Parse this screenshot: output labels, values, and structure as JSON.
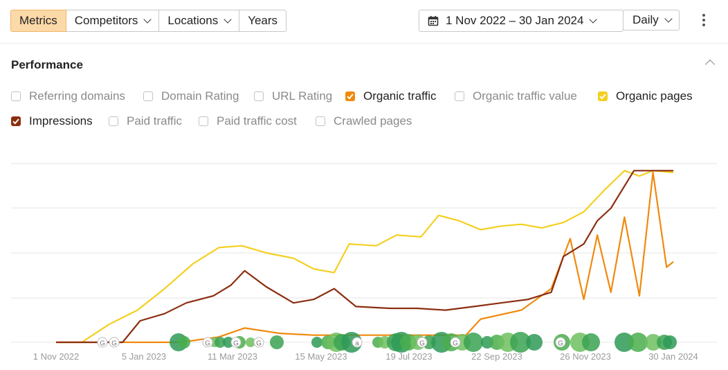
{
  "toolbar": {
    "tabs": [
      {
        "label": "Metrics",
        "active": true
      },
      {
        "label": "Competitors",
        "dropdown": true
      },
      {
        "label": "Locations",
        "dropdown": true
      },
      {
        "label": "Years"
      }
    ],
    "date_range": "1 Nov 2022 – 30 Jan 2024",
    "granularity": "Daily",
    "icons": {
      "calendar": "calendar-icon",
      "more": "more-vertical-icon"
    }
  },
  "section": {
    "title": "Performance"
  },
  "metrics": [
    {
      "label": "Referring domains",
      "checked": false
    },
    {
      "label": "Domain Rating",
      "checked": false
    },
    {
      "label": "URL Rating",
      "checked": false
    },
    {
      "label": "Organic traffic",
      "checked": true,
      "color": "#f0890c"
    },
    {
      "label": "Organic traffic value",
      "checked": false
    },
    {
      "label": "Organic pages",
      "checked": true,
      "color": "#f4cf1e"
    },
    {
      "label": "Impressions",
      "checked": true,
      "color": "#8b2e10"
    },
    {
      "label": "Paid traffic",
      "checked": false
    },
    {
      "label": "Paid traffic cost",
      "checked": false
    },
    {
      "label": "Crawled pages",
      "checked": false
    }
  ],
  "chart_data": {
    "type": "line",
    "x_tick_labels": [
      "1 Nov 2022",
      "5 Jan 2023",
      "11 Mar 2023",
      "15 May 2023",
      "19 Jul 2023",
      "22 Sep 2023",
      "26 Nov 2023",
      "30 Jan 2024"
    ],
    "y_range_relative": [
      0,
      100
    ],
    "grid": true,
    "series": [
      {
        "name": "Organic pages",
        "color": "#f4cf1e",
        "x": [
          "2022-11-01",
          "2022-11-20",
          "2022-12-10",
          "2022-12-31",
          "2023-01-20",
          "2023-02-10",
          "2023-03-01",
          "2023-03-18",
          "2023-04-05",
          "2023-04-25",
          "2023-05-10",
          "2023-05-25",
          "2023-06-05",
          "2023-06-25",
          "2023-07-10",
          "2023-07-28",
          "2023-08-10",
          "2023-08-25",
          "2023-09-10",
          "2023-09-25",
          "2023-10-10",
          "2023-10-25",
          "2023-11-10",
          "2023-11-25",
          "2023-12-10",
          "2023-12-25",
          "2024-01-05",
          "2024-01-15",
          "2024-01-30"
        ],
        "values": [
          0,
          0,
          10,
          18,
          30,
          44,
          53,
          54,
          50,
          47,
          41,
          39,
          55,
          54,
          60,
          59,
          71,
          68,
          63,
          65,
          66,
          64,
          67,
          73,
          85,
          96,
          93,
          96,
          95
        ]
      },
      {
        "name": "Impressions",
        "color": "#8b2e10",
        "x": [
          "2022-11-01",
          "2022-12-20",
          "2023-01-02",
          "2023-01-20",
          "2023-02-05",
          "2023-02-25",
          "2023-03-10",
          "2023-03-20",
          "2023-04-05",
          "2023-04-25",
          "2023-05-10",
          "2023-05-25",
          "2023-06-10",
          "2023-07-05",
          "2023-07-25",
          "2023-08-15",
          "2023-09-05",
          "2023-09-25",
          "2023-10-15",
          "2023-11-01",
          "2023-11-10",
          "2023-11-25",
          "2023-12-05",
          "2023-12-15",
          "2024-01-01",
          "2024-01-30"
        ],
        "values": [
          0,
          0,
          12,
          16,
          22,
          26,
          32,
          40,
          31,
          22,
          24,
          30,
          20,
          19,
          19,
          18,
          20,
          22,
          24,
          28,
          48,
          55,
          68,
          75,
          96,
          96
        ]
      },
      {
        "name": "Organic traffic",
        "color": "#f0890c",
        "x": [
          "2022-11-01",
          "2023-02-01",
          "2023-03-01",
          "2023-03-20",
          "2023-04-15",
          "2023-05-10",
          "2023-06-10",
          "2023-07-20",
          "2023-08-30",
          "2023-09-10",
          "2023-10-10",
          "2023-11-01",
          "2023-11-15",
          "2023-11-25",
          "2023-12-05",
          "2023-12-15",
          "2023-12-25",
          "2024-01-05",
          "2024-01-15",
          "2024-01-25",
          "2024-01-30"
        ],
        "values": [
          0,
          0,
          3,
          8,
          5,
          4,
          4,
          4,
          4,
          13,
          18,
          30,
          58,
          24,
          60,
          28,
          70,
          26,
          95,
          42,
          45
        ]
      }
    ],
    "annotations": "Google algorithm updates (G markers) and green event bubbles along the x-axis"
  }
}
